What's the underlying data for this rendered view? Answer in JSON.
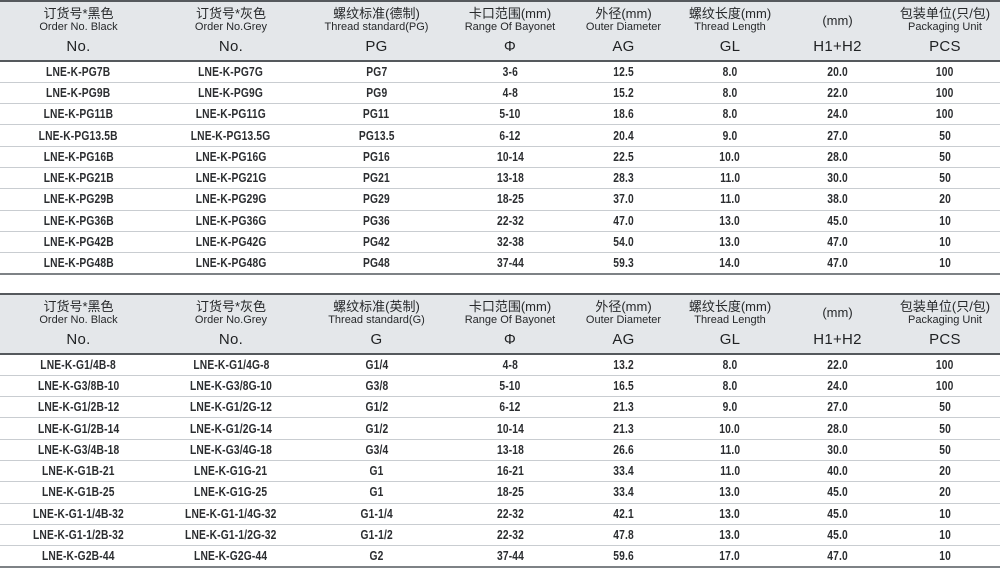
{
  "colors": {
    "header_background": "#e4e7ea",
    "header_border": "#55595d",
    "row_separator": "#c9cdd1",
    "table_bottom_border": "#7e8286",
    "text": "#2b2d30"
  },
  "tables": [
    {
      "id": "pg-metric",
      "header": {
        "columns": [
          {
            "cn": "订货号*黑色",
            "en": "Order No. Black",
            "symbol": "No."
          },
          {
            "cn": "订货号*灰色",
            "en": "Order No.Grey",
            "symbol": "No."
          },
          {
            "cn": "螺纹标准(德制)",
            "en": "Thread standard(PG)",
            "symbol": "PG"
          },
          {
            "cn": "卡口范围(mm)",
            "en": "Range Of Bayonet",
            "symbol": "Φ"
          },
          {
            "cn": "外径(mm)",
            "en": "Outer Diameter",
            "symbol": "AG"
          },
          {
            "cn": "螺纹长度(mm)",
            "en": "Thread Length",
            "symbol": "GL"
          },
          {
            "cn": "(mm)",
            "en": "",
            "symbol": "H1+H2"
          },
          {
            "cn": "包装单位(只/包)",
            "en": "Packaging Unit",
            "symbol": "PCS"
          }
        ]
      },
      "rows": [
        [
          "LNE-K-PG7B",
          "LNE-K-PG7G",
          "PG7",
          "3-6",
          "12.5",
          "8.0",
          "20.0",
          "100"
        ],
        [
          "LNE-K-PG9B",
          "LNE-K-PG9G",
          "PG9",
          "4-8",
          "15.2",
          "8.0",
          "22.0",
          "100"
        ],
        [
          "LNE-K-PG11B",
          "LNE-K-PG11G",
          "PG11",
          "5-10",
          "18.6",
          "8.0",
          "24.0",
          "100"
        ],
        [
          "LNE-K-PG13.5B",
          "LNE-K-PG13.5G",
          "PG13.5",
          "6-12",
          "20.4",
          "9.0",
          "27.0",
          "50"
        ],
        [
          "LNE-K-PG16B",
          "LNE-K-PG16G",
          "PG16",
          "10-14",
          "22.5",
          "10.0",
          "28.0",
          "50"
        ],
        [
          "LNE-K-PG21B",
          "LNE-K-PG21G",
          "PG21",
          "13-18",
          "28.3",
          "11.0",
          "30.0",
          "50"
        ],
        [
          "LNE-K-PG29B",
          "LNE-K-PG29G",
          "PG29",
          "18-25",
          "37.0",
          "11.0",
          "38.0",
          "20"
        ],
        [
          "LNE-K-PG36B",
          "LNE-K-PG36G",
          "PG36",
          "22-32",
          "47.0",
          "13.0",
          "45.0",
          "10"
        ],
        [
          "LNE-K-PG42B",
          "LNE-K-PG42G",
          "PG42",
          "32-38",
          "54.0",
          "13.0",
          "47.0",
          "10"
        ],
        [
          "LNE-K-PG48B",
          "LNE-K-PG48G",
          "PG48",
          "37-44",
          "59.3",
          "14.0",
          "47.0",
          "10"
        ]
      ]
    },
    {
      "id": "g-imperial",
      "header": {
        "columns": [
          {
            "cn": "订货号*黑色",
            "en": "Order No. Black",
            "symbol": "No."
          },
          {
            "cn": "订货号*灰色",
            "en": "Order No.Grey",
            "symbol": "No."
          },
          {
            "cn": "螺纹标准(英制)",
            "en": "Thread standard(G)",
            "symbol": "G"
          },
          {
            "cn": "卡口范围(mm)",
            "en": "Range Of Bayonet",
            "symbol": "Φ"
          },
          {
            "cn": "外径(mm)",
            "en": "Outer Diameter",
            "symbol": "AG"
          },
          {
            "cn": "螺纹长度(mm)",
            "en": "Thread Length",
            "symbol": "GL"
          },
          {
            "cn": "(mm)",
            "en": "",
            "symbol": "H1+H2"
          },
          {
            "cn": "包装单位(只/包)",
            "en": "Packaging Unit",
            "symbol": "PCS"
          }
        ]
      },
      "rows": [
        [
          "LNE-K-G1/4B-8",
          "LNE-K-G1/4G-8",
          "G1/4",
          "4-8",
          "13.2",
          "8.0",
          "22.0",
          "100"
        ],
        [
          "LNE-K-G3/8B-10",
          "LNE-K-G3/8G-10",
          "G3/8",
          "5-10",
          "16.5",
          "8.0",
          "24.0",
          "100"
        ],
        [
          "LNE-K-G1/2B-12",
          "LNE-K-G1/2G-12",
          "G1/2",
          "6-12",
          "21.3",
          "9.0",
          "27.0",
          "50"
        ],
        [
          "LNE-K-G1/2B-14",
          "LNE-K-G1/2G-14",
          "G1/2",
          "10-14",
          "21.3",
          "10.0",
          "28.0",
          "50"
        ],
        [
          "LNE-K-G3/4B-18",
          "LNE-K-G3/4G-18",
          "G3/4",
          "13-18",
          "26.6",
          "11.0",
          "30.0",
          "50"
        ],
        [
          "LNE-K-G1B-21",
          "LNE-K-G1G-21",
          "G1",
          "16-21",
          "33.4",
          "11.0",
          "40.0",
          "20"
        ],
        [
          "LNE-K-G1B-25",
          "LNE-K-G1G-25",
          "G1",
          "18-25",
          "33.4",
          "13.0",
          "45.0",
          "20"
        ],
        [
          "LNE-K-G1-1/4B-32",
          "LNE-K-G1-1/4G-32",
          "G1-1/4",
          "22-32",
          "42.1",
          "13.0",
          "45.0",
          "10"
        ],
        [
          "LNE-K-G1-1/2B-32",
          "LNE-K-G1-1/2G-32",
          "G1-1/2",
          "22-32",
          "47.8",
          "13.0",
          "45.0",
          "10"
        ],
        [
          "LNE-K-G2B-44",
          "LNE-K-G2G-44",
          "G2",
          "37-44",
          "59.6",
          "17.0",
          "47.0",
          "10"
        ]
      ]
    }
  ]
}
